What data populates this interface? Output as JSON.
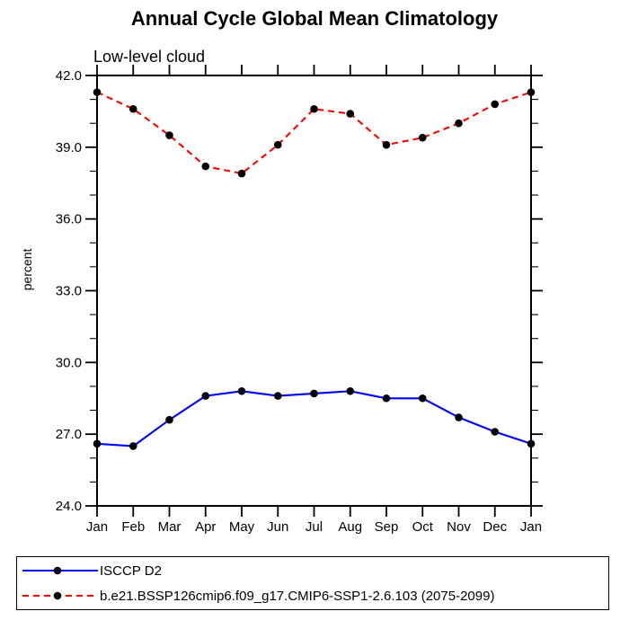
{
  "chart": {
    "title": "Annual Cycle Global Mean Climatology",
    "subtitle": "Low-level cloud",
    "ylabel": "percent"
  },
  "legend": {
    "items": [
      {
        "label": "ISCCP D2",
        "color": "#0000ff",
        "line_style": "solid",
        "marker": "black-dot"
      },
      {
        "label": "b.e21.BSSP126cmip6.f09_g17.CMIP6-SSP1-2.6.103 (2075-2099)",
        "color": "#ff0000",
        "line_style": "dashed",
        "marker": "black-dot"
      }
    ]
  },
  "chart_data": {
    "type": "line",
    "title": "Annual Cycle Global Mean Climatology",
    "subtitle": "Low-level cloud",
    "xlabel": "",
    "ylabel": "percent",
    "categories": [
      "Jan",
      "Feb",
      "Mar",
      "Apr",
      "May",
      "Jun",
      "Jul",
      "Aug",
      "Sep",
      "Oct",
      "Nov",
      "Dec",
      "Jan"
    ],
    "series": [
      {
        "name": "ISCCP D2",
        "color": "#0000ff",
        "line_style": "solid",
        "marker": "black-dot",
        "values": [
          26.6,
          26.5,
          27.6,
          28.6,
          28.8,
          28.6,
          28.7,
          28.8,
          28.5,
          28.5,
          27.7,
          27.1,
          26.6
        ]
      },
      {
        "name": "b.e21.BSSP126cmip6.f09_g17.CMIP6-SSP1-2.6.103 (2075-2099)",
        "color": "#ff0000",
        "line_style": "dashed",
        "marker": "black-dot",
        "values": [
          41.3,
          40.6,
          39.5,
          38.2,
          37.9,
          39.1,
          40.6,
          40.4,
          39.1,
          39.4,
          40.0,
          40.8,
          41.3
        ]
      }
    ],
    "ylim": [
      24.0,
      42.0
    ],
    "yticks": [
      24.0,
      27.0,
      30.0,
      33.0,
      36.0,
      39.0,
      42.0
    ],
    "minor_tick_step": 1.0,
    "grid": false,
    "legend_position": "bottom",
    "marker_color": "#000000"
  }
}
